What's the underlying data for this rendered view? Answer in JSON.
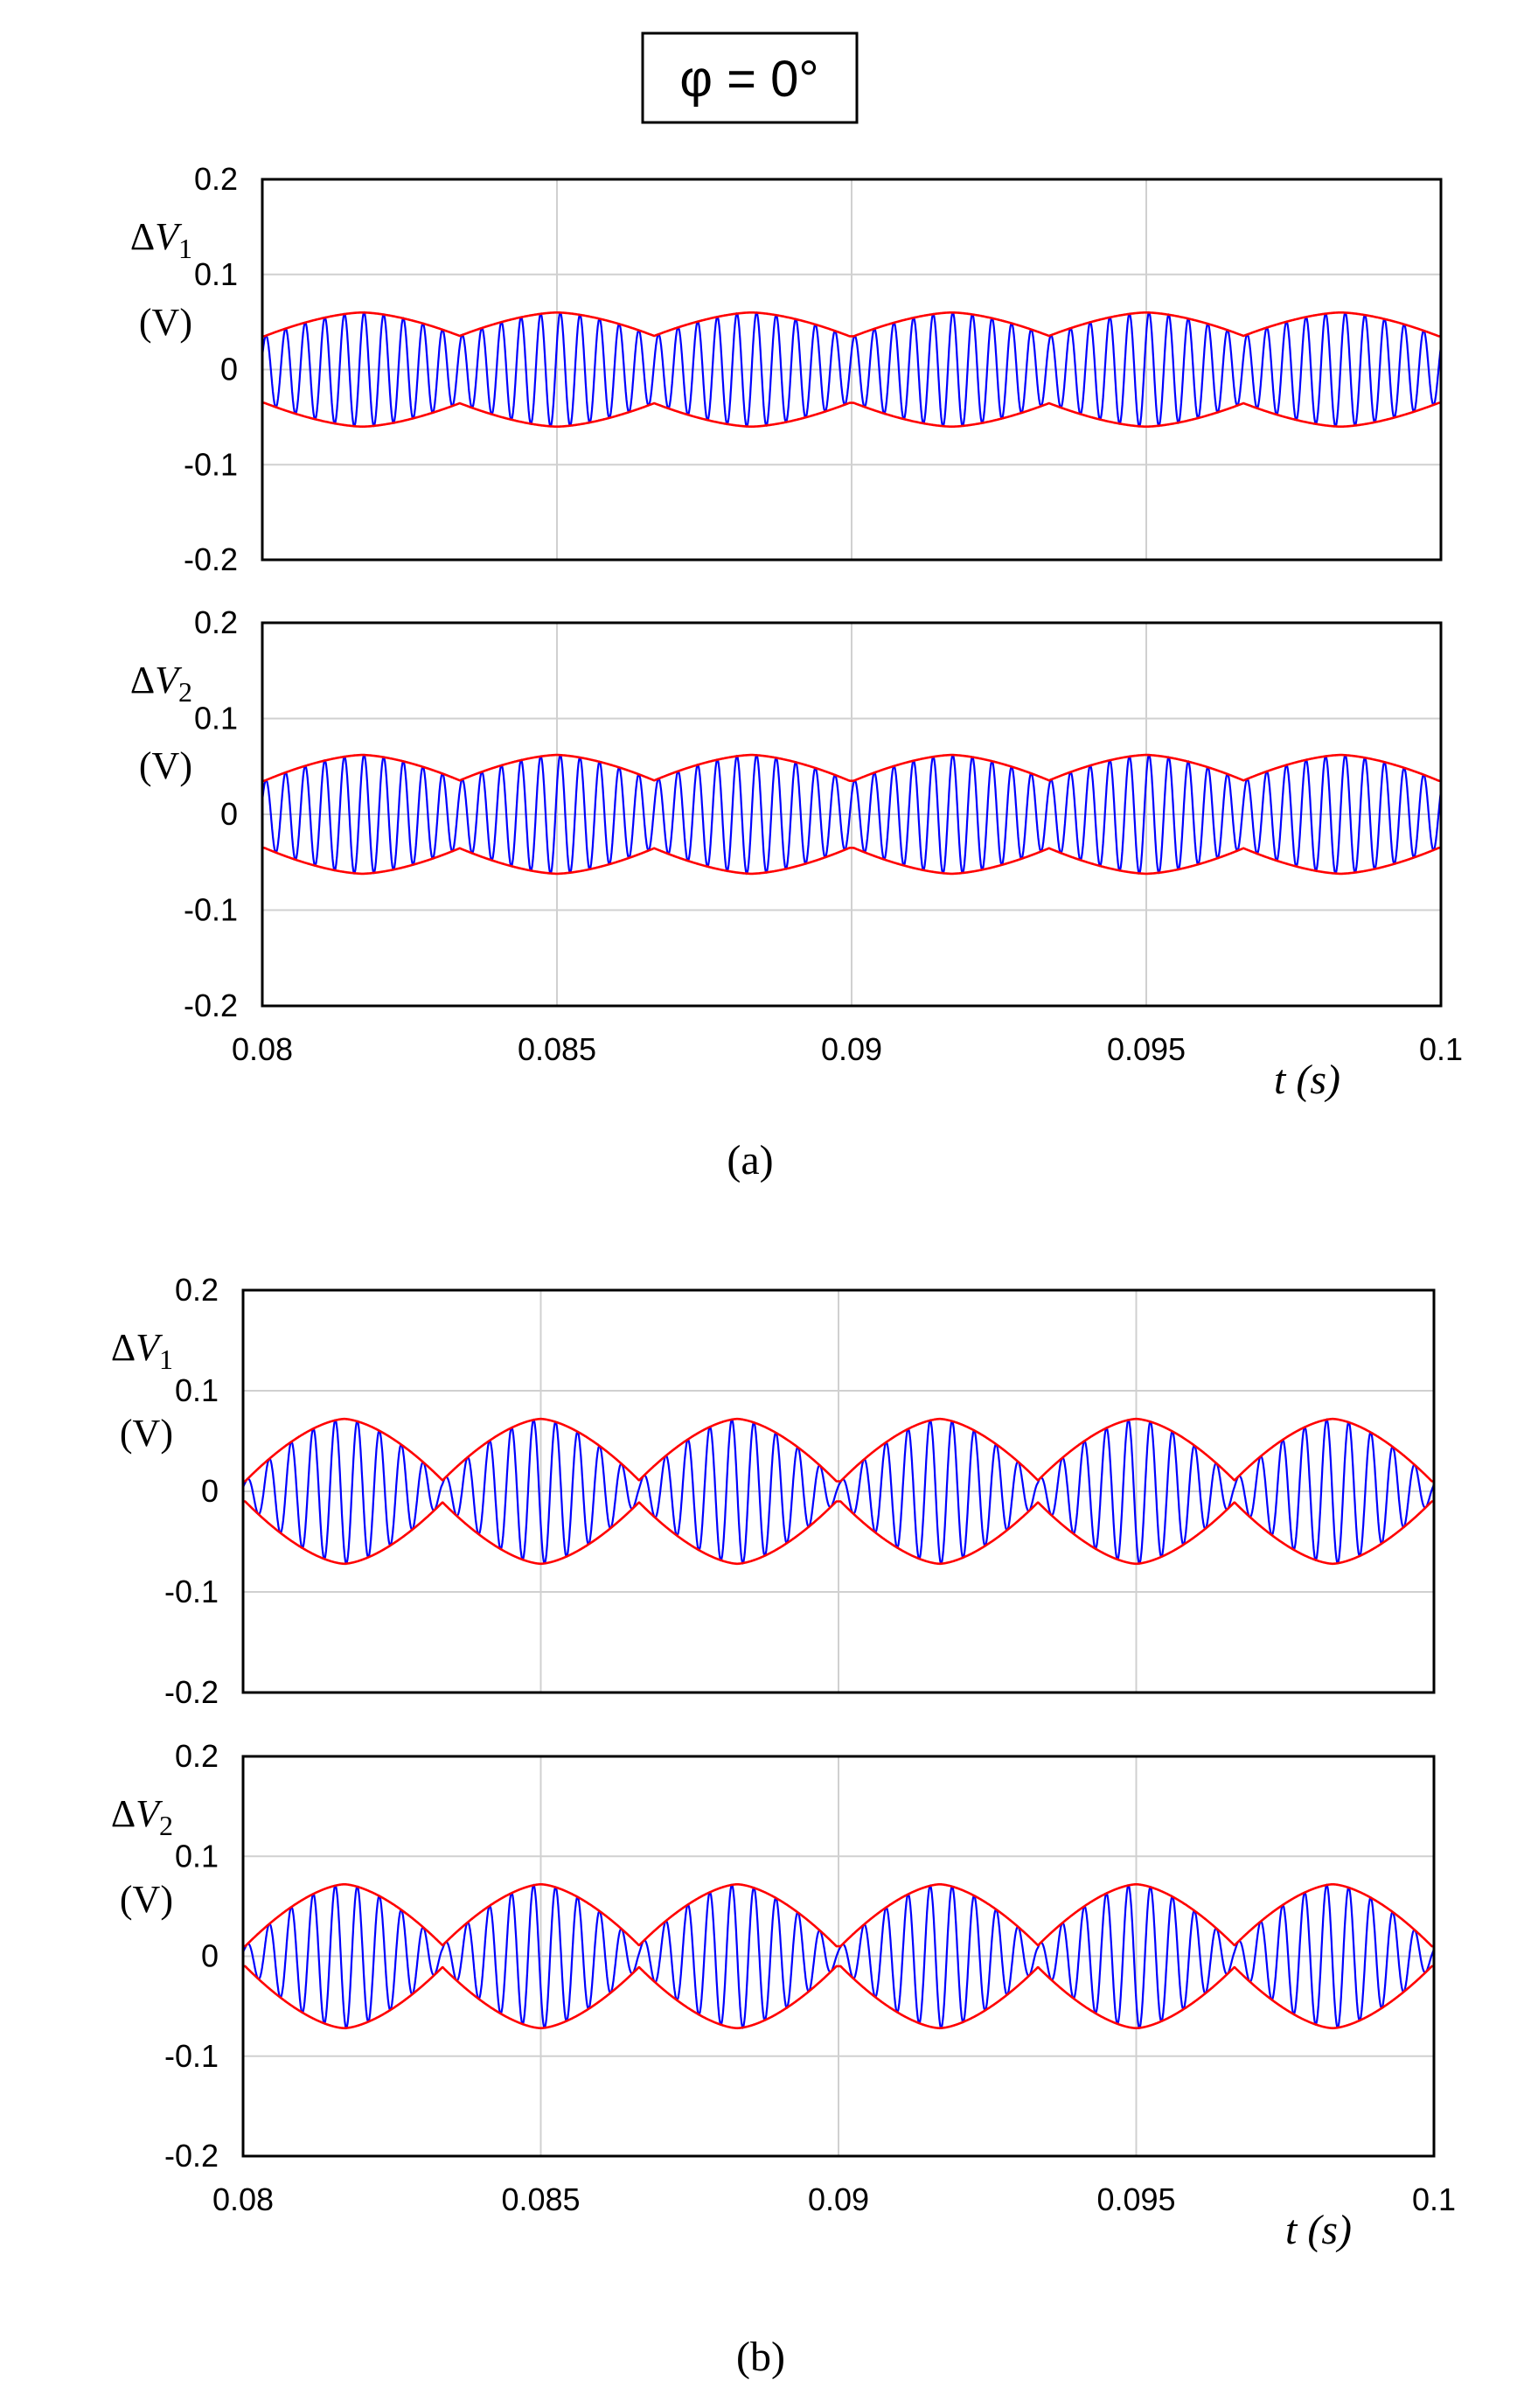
{
  "figure": {
    "phi_label": "φ = 0°",
    "x_axis_label": "t (s)",
    "captions": [
      "(a)",
      "(b)"
    ]
  },
  "colors": {
    "signal": "#0000ff",
    "envelope": "#ff0000",
    "grid": "#d0d0d0",
    "axes": "#000000"
  },
  "chart_data": [
    {
      "type": "line",
      "panel": "a",
      "title": "",
      "ylabel_main": "ΔV1",
      "ylabel_unit": "(V)",
      "xlim": [
        0.08,
        0.1
      ],
      "ylim": [
        -0.2,
        0.2
      ],
      "x_ticks": [
        "0.08",
        "0.085",
        "0.09",
        "0.095",
        "0.1"
      ],
      "y_ticks": [
        "0.2",
        "0.1",
        "0",
        "-0.1",
        "-0.2"
      ],
      "grid": true,
      "envelope_peak_times": [
        0.0817,
        0.085,
        0.0883,
        0.0917,
        0.095,
        0.0983
      ],
      "envelope_min": 0.035,
      "envelope_max": 0.06,
      "segment_period": 0.00333,
      "carrier_cycles_per_segment": 10,
      "series": [
        {
          "name": "",
          "color": "#0000ff",
          "kind": "signal"
        },
        {
          "name": "",
          "color": "#ff0000",
          "kind": "envelope"
        }
      ]
    },
    {
      "type": "line",
      "panel": "a",
      "title": "",
      "ylabel_main": "ΔV2",
      "ylabel_unit": "(V)",
      "xlim": [
        0.08,
        0.1
      ],
      "ylim": [
        -0.2,
        0.2
      ],
      "x_ticks": [
        "0.08",
        "0.085",
        "0.09",
        "0.095",
        "0.1"
      ],
      "y_ticks": [
        "0.2",
        "0.1",
        "0",
        "-0.1",
        "-0.2"
      ],
      "x_tick_labels_shown": true,
      "grid": true,
      "envelope_peak_times": [
        0.0817,
        0.085,
        0.0883,
        0.0917,
        0.095,
        0.0983
      ],
      "envelope_min": 0.035,
      "envelope_max": 0.062,
      "segment_period": 0.00333,
      "carrier_cycles_per_segment": 10,
      "series": [
        {
          "name": "",
          "color": "#0000ff",
          "kind": "signal"
        },
        {
          "name": "",
          "color": "#ff0000",
          "kind": "envelope"
        }
      ]
    },
    {
      "type": "line",
      "panel": "b",
      "title": "",
      "ylabel_main": "ΔV1",
      "ylabel_unit": "(V)",
      "xlim": [
        0.08,
        0.1
      ],
      "ylim": [
        -0.2,
        0.2
      ],
      "x_ticks": [
        "0.08",
        "0.085",
        "0.09",
        "0.095",
        "0.1"
      ],
      "y_ticks": [
        "0.2",
        "0.1",
        "0",
        "-0.1",
        "-0.2"
      ],
      "grid": true,
      "envelope_peak_times": [
        0.0817,
        0.085,
        0.0883,
        0.0917,
        0.095,
        0.0983
      ],
      "envelope_min": 0.01,
      "envelope_max": 0.072,
      "segment_period": 0.00333,
      "carrier_cycles_per_segment": 9,
      "series": [
        {
          "name": "",
          "color": "#0000ff",
          "kind": "signal"
        },
        {
          "name": "",
          "color": "#ff0000",
          "kind": "envelope"
        }
      ]
    },
    {
      "type": "line",
      "panel": "b",
      "title": "",
      "ylabel_main": "ΔV2",
      "ylabel_unit": "(V)",
      "xlim": [
        0.08,
        0.1
      ],
      "ylim": [
        -0.2,
        0.2
      ],
      "x_ticks": [
        "0.08",
        "0.085",
        "0.09",
        "0.095",
        "0.1"
      ],
      "y_ticks": [
        "0.2",
        "0.1",
        "0",
        "-0.1",
        "-0.2"
      ],
      "x_tick_labels_shown": true,
      "grid": true,
      "envelope_peak_times": [
        0.0817,
        0.085,
        0.0883,
        0.0917,
        0.095,
        0.0983
      ],
      "envelope_min": 0.01,
      "envelope_max": 0.072,
      "segment_period": 0.00333,
      "carrier_cycles_per_segment": 9,
      "series": [
        {
          "name": "",
          "color": "#0000ff",
          "kind": "signal"
        },
        {
          "name": "",
          "color": "#ff0000",
          "kind": "envelope"
        }
      ]
    }
  ]
}
